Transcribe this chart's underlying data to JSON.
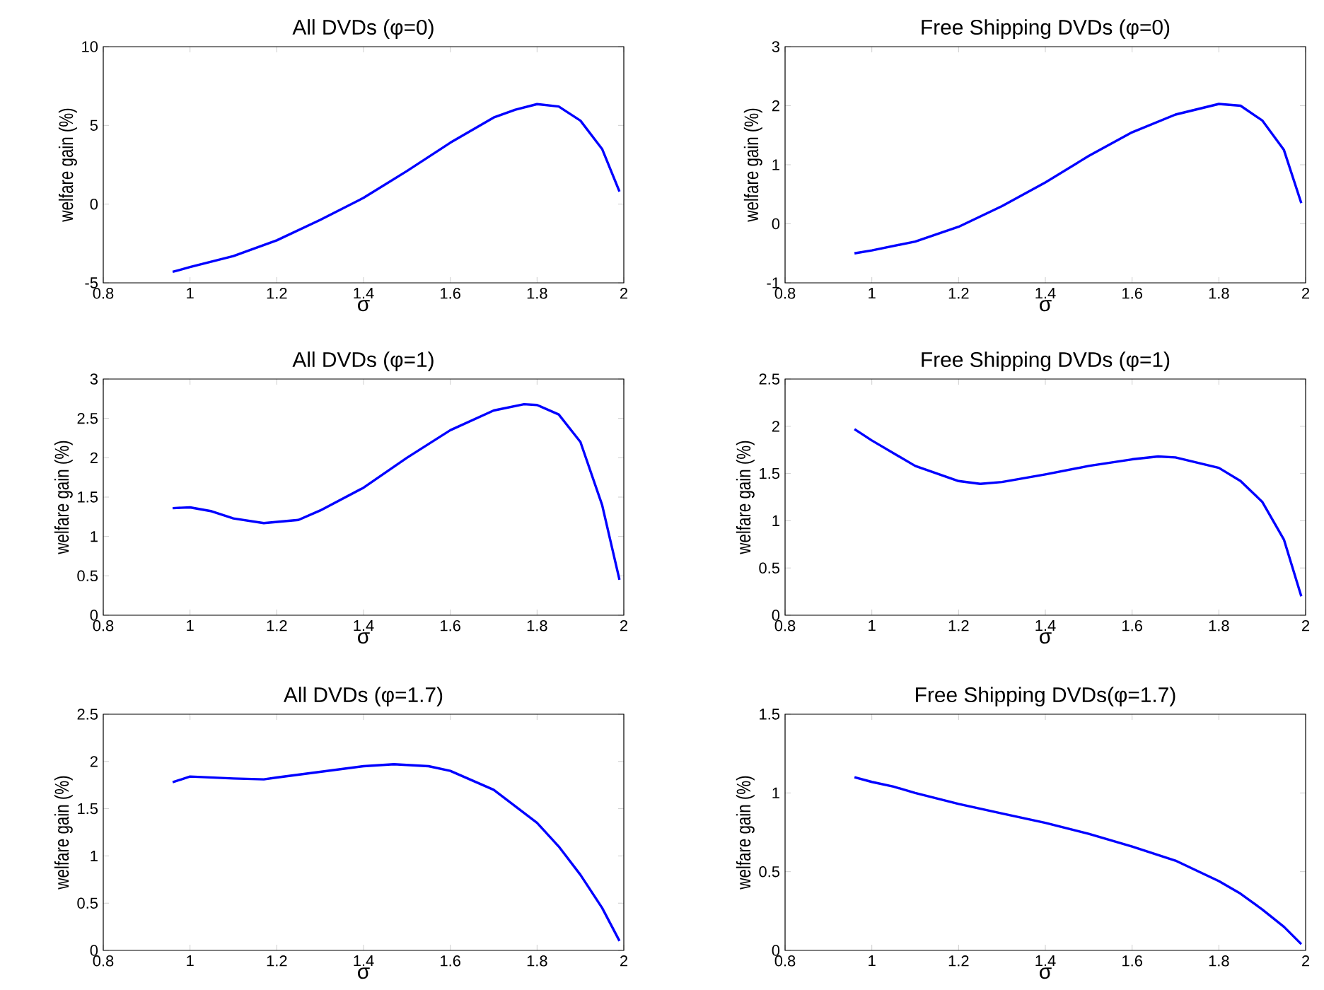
{
  "chart_data": [
    {
      "type": "line",
      "title": "All DVDs (φ=0)",
      "xlabel": "σ",
      "ylabel": "welfare gain (%)",
      "color": "#0000ff",
      "xlim": [
        0.8,
        2
      ],
      "ylim": [
        -5,
        10
      ],
      "xticks": [
        0.8,
        1,
        1.2,
        1.4,
        1.6,
        1.8,
        2
      ],
      "yticks": [
        -5,
        0,
        5,
        10
      ],
      "x": [
        0.96,
        1.0,
        1.1,
        1.2,
        1.3,
        1.4,
        1.5,
        1.6,
        1.7,
        1.75,
        1.8,
        1.85,
        1.9,
        1.95,
        1.99
      ],
      "values": [
        -4.3,
        -4.0,
        -3.3,
        -2.3,
        -1.0,
        0.4,
        2.1,
        3.9,
        5.5,
        6.0,
        6.35,
        6.2,
        5.3,
        3.5,
        0.8
      ]
    },
    {
      "type": "line",
      "title": "Free Shipping DVDs (φ=0)",
      "xlabel": "σ",
      "ylabel": "welfare gain (%)",
      "color": "#0000ff",
      "xlim": [
        0.8,
        2
      ],
      "ylim": [
        -1,
        3
      ],
      "xticks": [
        0.8,
        1,
        1.2,
        1.4,
        1.6,
        1.8,
        2
      ],
      "yticks": [
        -1,
        0,
        1,
        2,
        3
      ],
      "x": [
        0.96,
        1.0,
        1.1,
        1.2,
        1.3,
        1.4,
        1.5,
        1.6,
        1.7,
        1.8,
        1.85,
        1.9,
        1.95,
        1.99
      ],
      "values": [
        -0.5,
        -0.45,
        -0.3,
        -0.05,
        0.3,
        0.7,
        1.15,
        1.55,
        1.85,
        2.03,
        2.0,
        1.75,
        1.25,
        0.35
      ]
    },
    {
      "type": "line",
      "title": "All DVDs (φ=1)",
      "xlabel": "σ",
      "ylabel": "welfare gain (%)",
      "color": "#0000ff",
      "xlim": [
        0.8,
        2
      ],
      "ylim": [
        0,
        3
      ],
      "xticks": [
        0.8,
        1,
        1.2,
        1.4,
        1.6,
        1.8,
        2
      ],
      "yticks": [
        0,
        0.5,
        1,
        1.5,
        2,
        2.5,
        3
      ],
      "x": [
        0.96,
        1.0,
        1.05,
        1.1,
        1.17,
        1.25,
        1.3,
        1.4,
        1.5,
        1.6,
        1.7,
        1.77,
        1.8,
        1.85,
        1.9,
        1.95,
        1.99
      ],
      "values": [
        1.36,
        1.37,
        1.32,
        1.23,
        1.17,
        1.21,
        1.33,
        1.62,
        2.0,
        2.35,
        2.6,
        2.68,
        2.67,
        2.55,
        2.2,
        1.4,
        0.45
      ]
    },
    {
      "type": "line",
      "title": "Free Shipping DVDs (φ=1)",
      "xlabel": "σ",
      "ylabel": "welfare gain (%)",
      "color": "#0000ff",
      "xlim": [
        0.8,
        2
      ],
      "ylim": [
        0,
        2.5
      ],
      "xticks": [
        0.8,
        1,
        1.2,
        1.4,
        1.6,
        1.8,
        2
      ],
      "yticks": [
        0,
        0.5,
        1,
        1.5,
        2,
        2.5
      ],
      "x": [
        0.96,
        1.0,
        1.1,
        1.2,
        1.25,
        1.3,
        1.4,
        1.5,
        1.6,
        1.66,
        1.7,
        1.8,
        1.85,
        1.9,
        1.95,
        1.99
      ],
      "values": [
        1.97,
        1.85,
        1.58,
        1.42,
        1.39,
        1.41,
        1.49,
        1.58,
        1.65,
        1.68,
        1.67,
        1.56,
        1.42,
        1.2,
        0.8,
        0.2
      ]
    },
    {
      "type": "line",
      "title": "All DVDs (φ=1.7)",
      "xlabel": "σ",
      "ylabel": "welfare gain (%)",
      "color": "#0000ff",
      "xlim": [
        0.8,
        2
      ],
      "ylim": [
        0,
        2.5
      ],
      "xticks": [
        0.8,
        1,
        1.2,
        1.4,
        1.6,
        1.8,
        2
      ],
      "yticks": [
        0,
        0.5,
        1,
        1.5,
        2,
        2.5
      ],
      "x": [
        0.96,
        1.0,
        1.1,
        1.17,
        1.2,
        1.3,
        1.4,
        1.47,
        1.55,
        1.6,
        1.7,
        1.8,
        1.85,
        1.9,
        1.95,
        1.99
      ],
      "values": [
        1.78,
        1.84,
        1.82,
        1.81,
        1.83,
        1.89,
        1.95,
        1.97,
        1.95,
        1.9,
        1.7,
        1.35,
        1.1,
        0.8,
        0.45,
        0.1
      ]
    },
    {
      "type": "line",
      "title": "Free Shipping DVDs(φ=1.7)",
      "xlabel": "σ",
      "ylabel": "welfare gain (%)",
      "color": "#0000ff",
      "xlim": [
        0.8,
        2
      ],
      "ylim": [
        0,
        1.5
      ],
      "xticks": [
        0.8,
        1,
        1.2,
        1.4,
        1.6,
        1.8,
        2
      ],
      "yticks": [
        0,
        0.5,
        1,
        1.5
      ],
      "x": [
        0.96,
        1.0,
        1.05,
        1.1,
        1.2,
        1.3,
        1.4,
        1.5,
        1.6,
        1.7,
        1.8,
        1.85,
        1.9,
        1.95,
        1.99
      ],
      "values": [
        1.1,
        1.07,
        1.04,
        1.0,
        0.93,
        0.87,
        0.81,
        0.74,
        0.66,
        0.57,
        0.44,
        0.36,
        0.26,
        0.15,
        0.04
      ]
    }
  ]
}
